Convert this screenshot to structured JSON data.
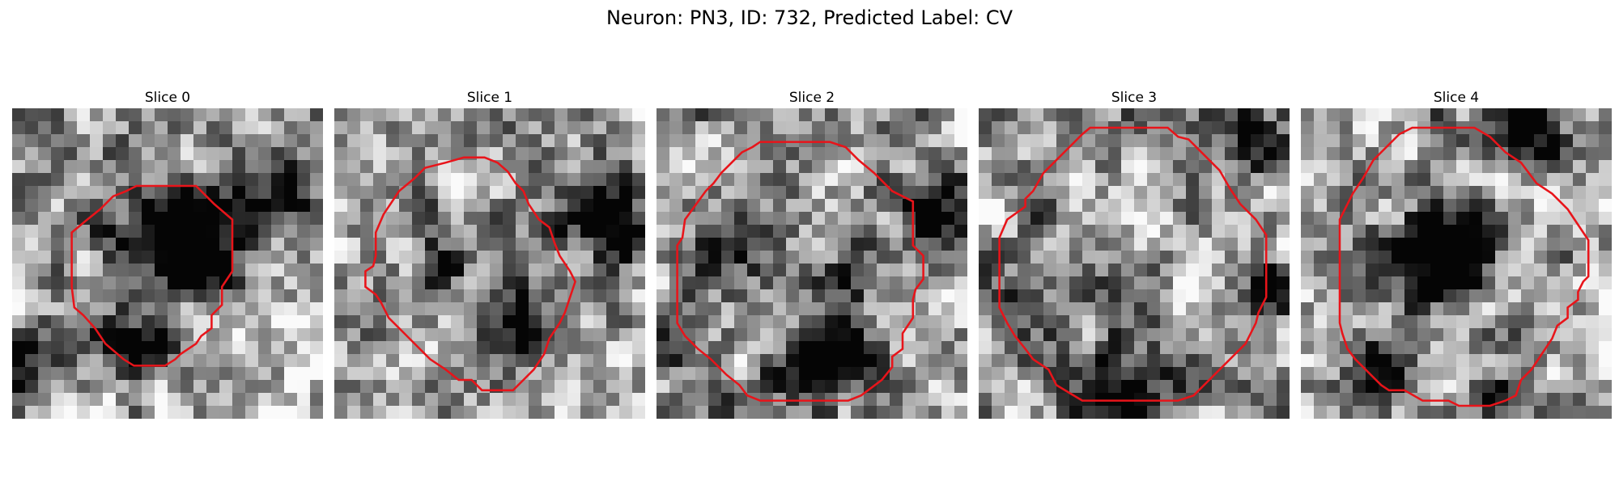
{
  "figure": {
    "title": "Neuron: PN3, ID: 732, Predicted Label: CV"
  },
  "grid_size": 24,
  "colors": {
    "contour": "#e8141a",
    "background": "#ffffff"
  },
  "panels": [
    {
      "label": "Slice 0",
      "seed": 11,
      "contour": [
        [
          8.8,
          6.4
        ],
        [
          9.6,
          6.0
        ],
        [
          14.2,
          6.0
        ],
        [
          15.6,
          7.4
        ],
        [
          17.0,
          8.6
        ],
        [
          17.0,
          12.6
        ],
        [
          16.2,
          13.8
        ],
        [
          16.2,
          15.2
        ],
        [
          15.4,
          16.0
        ],
        [
          15.4,
          17.0
        ],
        [
          14.6,
          17.6
        ],
        [
          14.2,
          18.2
        ],
        [
          13.0,
          19.0
        ],
        [
          12.6,
          19.4
        ],
        [
          11.8,
          19.9
        ],
        [
          9.4,
          19.9
        ],
        [
          8.6,
          19.4
        ],
        [
          7.2,
          18.2
        ],
        [
          6.4,
          17.0
        ],
        [
          5.5,
          16.0
        ],
        [
          4.8,
          15.4
        ],
        [
          4.6,
          13.8
        ],
        [
          4.6,
          9.6
        ],
        [
          5.8,
          8.6
        ],
        [
          6.8,
          7.8
        ],
        [
          7.8,
          6.8
        ]
      ],
      "dark": [
        [
          14.5,
          10.0,
          2.4,
          1.0
        ],
        [
          10.0,
          10.5,
          3.0,
          0.6
        ],
        [
          9.5,
          18.6,
          1.4,
          0.6
        ],
        [
          21.0,
          6.5,
          1.8,
          0.7
        ],
        [
          1.8,
          20.0,
          2.0,
          0.6
        ]
      ]
    },
    {
      "label": "Slice 1",
      "seed": 23,
      "contour": [
        [
          8.6,
          4.2
        ],
        [
          10.0,
          3.8
        ],
        [
          11.6,
          3.8
        ],
        [
          12.6,
          4.2
        ],
        [
          13.4,
          4.9
        ],
        [
          14.0,
          5.8
        ],
        [
          14.6,
          6.4
        ],
        [
          15.0,
          7.4
        ],
        [
          15.8,
          8.6
        ],
        [
          16.6,
          9.2
        ],
        [
          17.0,
          10.4
        ],
        [
          17.4,
          11.4
        ],
        [
          18.2,
          12.6
        ],
        [
          18.6,
          13.4
        ],
        [
          18.2,
          14.6
        ],
        [
          17.8,
          15.8
        ],
        [
          17.4,
          16.6
        ],
        [
          16.6,
          17.8
        ],
        [
          16.2,
          19.0
        ],
        [
          15.4,
          20.2
        ],
        [
          14.6,
          21.0
        ],
        [
          13.8,
          21.8
        ],
        [
          11.4,
          21.8
        ],
        [
          10.6,
          21.0
        ],
        [
          9.6,
          21.0
        ],
        [
          8.6,
          20.2
        ],
        [
          7.4,
          19.4
        ],
        [
          6.6,
          18.6
        ],
        [
          5.4,
          17.4
        ],
        [
          4.2,
          16.2
        ],
        [
          3.6,
          15.0
        ],
        [
          3.2,
          14.4
        ],
        [
          2.4,
          13.8
        ],
        [
          2.4,
          12.6
        ],
        [
          3.0,
          12.2
        ],
        [
          3.2,
          11.4
        ],
        [
          3.2,
          9.6
        ],
        [
          3.8,
          8.2
        ],
        [
          4.2,
          7.6
        ],
        [
          5.0,
          6.4
        ],
        [
          6.2,
          5.4
        ],
        [
          7.0,
          4.6
        ]
      ],
      "dark": [
        [
          20.0,
          7.0,
          2.0,
          0.7
        ],
        [
          22.0,
          10.0,
          1.6,
          0.5
        ],
        [
          8.0,
          12.0,
          1.8,
          0.4
        ],
        [
          14.5,
          16.0,
          2.0,
          0.5
        ]
      ]
    },
    {
      "label": "Slice 2",
      "seed": 37,
      "contour": [
        [
          7.4,
          3.0
        ],
        [
          8.0,
          2.6
        ],
        [
          13.4,
          2.6
        ],
        [
          14.6,
          3.0
        ],
        [
          15.6,
          4.0
        ],
        [
          16.8,
          5.0
        ],
        [
          18.2,
          6.4
        ],
        [
          19.8,
          7.2
        ],
        [
          19.8,
          10.6
        ],
        [
          20.6,
          11.4
        ],
        [
          20.6,
          13.2
        ],
        [
          20.0,
          14.0
        ],
        [
          19.8,
          14.8
        ],
        [
          19.8,
          16.2
        ],
        [
          19.0,
          17.4
        ],
        [
          19.0,
          18.6
        ],
        [
          18.2,
          19.2
        ],
        [
          18.2,
          20.0
        ],
        [
          17.4,
          21.0
        ],
        [
          16.6,
          21.6
        ],
        [
          15.8,
          22.2
        ],
        [
          14.8,
          22.6
        ],
        [
          8.0,
          22.6
        ],
        [
          7.0,
          22.2
        ],
        [
          6.4,
          21.4
        ],
        [
          5.4,
          20.6
        ],
        [
          4.2,
          19.4
        ],
        [
          3.2,
          18.6
        ],
        [
          2.8,
          18.2
        ],
        [
          2.2,
          17.6
        ],
        [
          1.6,
          16.6
        ],
        [
          1.6,
          10.6
        ],
        [
          2.0,
          10.0
        ],
        [
          2.2,
          8.6
        ],
        [
          3.8,
          6.4
        ],
        [
          4.4,
          5.8
        ],
        [
          5.0,
          5.0
        ],
        [
          5.8,
          4.2
        ],
        [
          6.6,
          3.4
        ]
      ],
      "dark": [
        [
          13.0,
          19.4,
          2.2,
          1.0
        ],
        [
          21.0,
          8.0,
          1.8,
          0.8
        ],
        [
          14.8,
          13.0,
          1.6,
          0.6
        ],
        [
          6.0,
          11.0,
          2.4,
          0.5
        ],
        [
          1.0,
          18.0,
          1.6,
          0.6
        ]
      ]
    },
    {
      "label": "Slice 3",
      "seed": 53,
      "contour": [
        [
          8.6,
          1.5
        ],
        [
          14.6,
          1.5
        ],
        [
          15.4,
          2.2
        ],
        [
          16.2,
          2.4
        ],
        [
          17.0,
          3.2
        ],
        [
          17.8,
          4.0
        ],
        [
          18.6,
          4.8
        ],
        [
          19.4,
          6.2
        ],
        [
          20.2,
          7.4
        ],
        [
          21.4,
          8.6
        ],
        [
          22.2,
          9.8
        ],
        [
          22.2,
          14.6
        ],
        [
          21.6,
          15.8
        ],
        [
          21.4,
          16.6
        ],
        [
          21.0,
          17.4
        ],
        [
          20.6,
          18.2
        ],
        [
          19.8,
          19.0
        ],
        [
          19.0,
          19.8
        ],
        [
          17.8,
          21.0
        ],
        [
          16.6,
          22.2
        ],
        [
          15.4,
          22.6
        ],
        [
          8.0,
          22.6
        ],
        [
          7.0,
          22.0
        ],
        [
          6.0,
          21.4
        ],
        [
          5.4,
          20.2
        ],
        [
          4.2,
          19.4
        ],
        [
          3.6,
          18.6
        ],
        [
          2.8,
          17.6
        ],
        [
          2.2,
          16.6
        ],
        [
          1.6,
          15.4
        ],
        [
          1.6,
          10.0
        ],
        [
          2.2,
          8.6
        ],
        [
          3.6,
          7.6
        ],
        [
          3.6,
          7.0
        ],
        [
          4.2,
          6.4
        ],
        [
          5.0,
          5.0
        ],
        [
          5.8,
          4.2
        ],
        [
          6.6,
          3.4
        ],
        [
          7.4,
          2.6
        ],
        [
          8.0,
          2.0
        ]
      ],
      "dark": [
        [
          22.6,
          14.0,
          1.4,
          0.8
        ],
        [
          3.0,
          16.0,
          2.0,
          0.6
        ],
        [
          12.0,
          21.0,
          3.0,
          0.5
        ],
        [
          21.0,
          3.0,
          1.8,
          0.5
        ]
      ]
    },
    {
      "label": "Slice 4",
      "seed": 71,
      "contour": [
        [
          7.6,
          2.0
        ],
        [
          8.6,
          1.5
        ],
        [
          13.4,
          1.5
        ],
        [
          14.6,
          2.2
        ],
        [
          15.8,
          3.4
        ],
        [
          17.0,
          4.2
        ],
        [
          18.2,
          5.8
        ],
        [
          19.4,
          6.6
        ],
        [
          20.6,
          7.8
        ],
        [
          21.4,
          9.0
        ],
        [
          22.2,
          10.2
        ],
        [
          22.2,
          13.0
        ],
        [
          21.8,
          13.4
        ],
        [
          21.4,
          14.2
        ],
        [
          21.4,
          14.8
        ],
        [
          20.6,
          15.4
        ],
        [
          20.6,
          16.2
        ],
        [
          19.8,
          16.8
        ],
        [
          19.4,
          17.8
        ],
        [
          18.6,
          19.0
        ],
        [
          17.8,
          20.2
        ],
        [
          17.0,
          21.0
        ],
        [
          16.6,
          22.2
        ],
        [
          15.8,
          22.6
        ],
        [
          14.6,
          23.0
        ],
        [
          12.2,
          23.0
        ],
        [
          11.4,
          22.6
        ],
        [
          9.4,
          22.6
        ],
        [
          8.0,
          21.8
        ],
        [
          6.8,
          21.8
        ],
        [
          6.2,
          21.4
        ],
        [
          5.4,
          20.6
        ],
        [
          4.2,
          19.4
        ],
        [
          3.6,
          18.6
        ],
        [
          3.2,
          17.4
        ],
        [
          3.0,
          16.6
        ],
        [
          3.0,
          8.6
        ],
        [
          3.6,
          7.4
        ],
        [
          4.0,
          6.6
        ],
        [
          4.8,
          5.4
        ],
        [
          5.6,
          4.0
        ],
        [
          6.6,
          3.0
        ]
      ],
      "dark": [
        [
          11.4,
          10.8,
          2.0,
          1.0
        ],
        [
          10.0,
          12.0,
          2.4,
          0.5
        ],
        [
          17.0,
          1.0,
          2.0,
          0.8
        ],
        [
          14.5,
          21.8,
          1.4,
          0.7
        ],
        [
          6.0,
          21.0,
          1.6,
          0.6
        ]
      ]
    }
  ]
}
